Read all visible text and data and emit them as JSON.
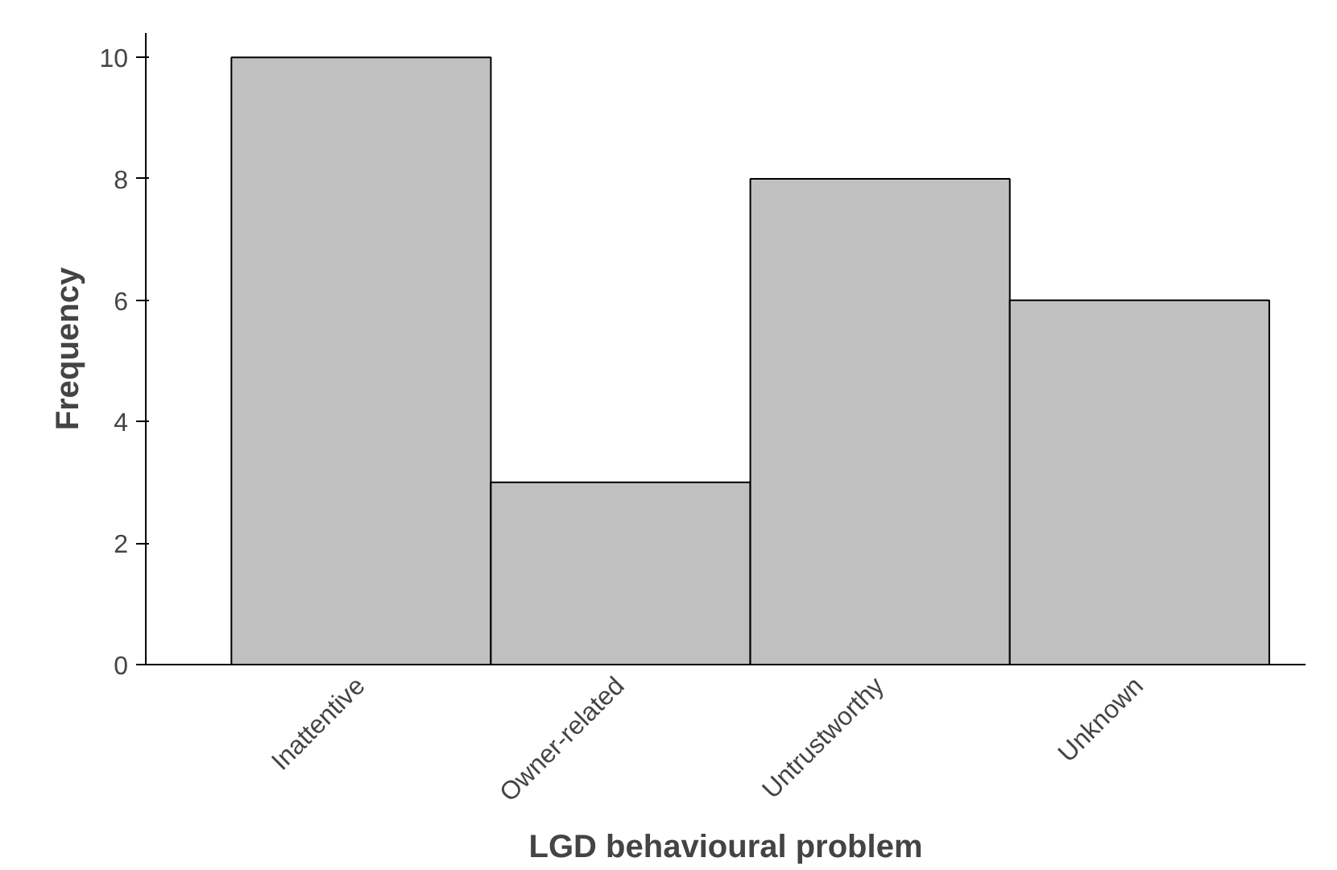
{
  "chart_data": {
    "type": "bar",
    "xlabel": "LGD behavioural problem",
    "ylabel": "Frequency",
    "categories": [
      "Inattentive",
      "Owner-related",
      "Untrustworthy",
      "Unknown"
    ],
    "values": [
      10,
      3,
      8,
      6
    ],
    "color": "#c0c0c0",
    "ylim": [
      0,
      10.4
    ],
    "yticks": [
      0,
      2,
      4,
      6,
      8,
      10
    ],
    "grid": false
  }
}
